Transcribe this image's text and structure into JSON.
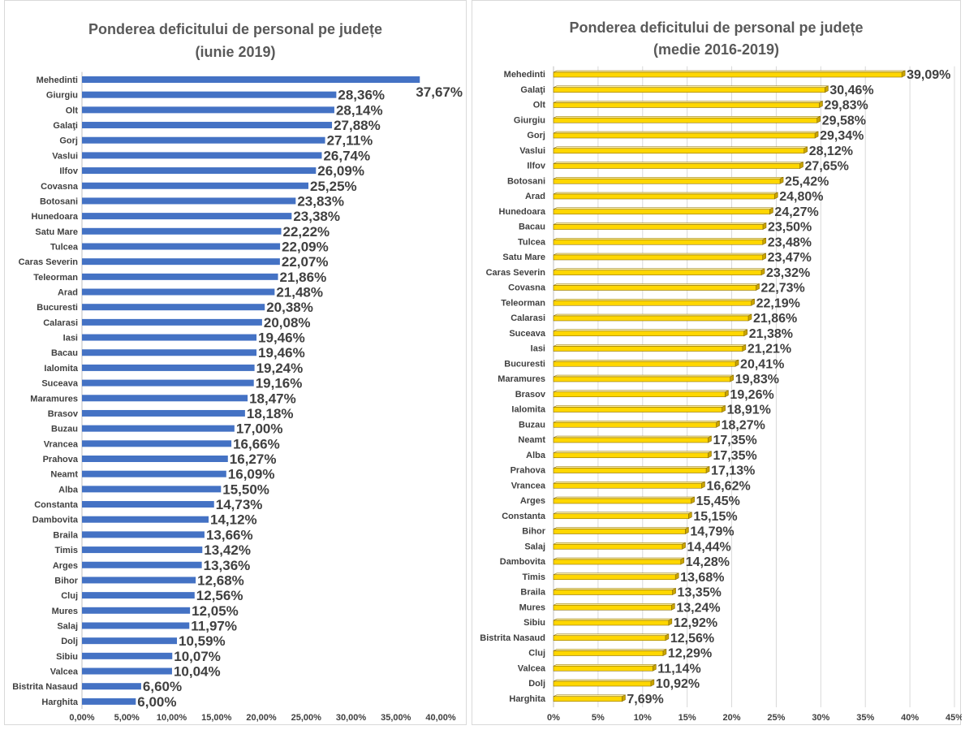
{
  "chart_data": [
    {
      "type": "bar",
      "orientation": "horizontal",
      "title": "Ponderea deficitului de personal pe județe",
      "subtitle": "(iunie 2019)",
      "categories": [
        "Mehedinti",
        "Giurgiu",
        "Olt",
        "Galaţi",
        "Gorj",
        "Vaslui",
        "Ilfov",
        "Covasna",
        "Botosani",
        "Hunedoara",
        "Satu Mare",
        "Tulcea",
        "Caras Severin",
        "Teleorman",
        "Arad",
        "Bucuresti",
        "Calarasi",
        "Iasi",
        "Bacau",
        "Ialomita",
        "Suceava",
        "Maramures",
        "Brasov",
        "Buzau",
        "Vrancea",
        "Prahova",
        "Neamt",
        "Alba",
        "Constanta",
        "Dambovita",
        "Braila",
        "Timis",
        "Arges",
        "Bihor",
        "Cluj",
        "Mures",
        "Salaj",
        "Dolj",
        "Sibiu",
        "Valcea",
        "Bistrita Nasaud",
        "Harghita"
      ],
      "values": [
        37.67,
        28.36,
        28.14,
        27.88,
        27.11,
        26.74,
        26.09,
        25.25,
        23.83,
        23.38,
        22.22,
        22.09,
        22.07,
        21.86,
        21.48,
        20.38,
        20.08,
        19.46,
        19.46,
        19.24,
        19.16,
        18.47,
        18.18,
        17.0,
        16.66,
        16.27,
        16.09,
        15.5,
        14.73,
        14.12,
        13.66,
        13.42,
        13.36,
        12.68,
        12.56,
        12.05,
        11.97,
        10.59,
        10.07,
        10.04,
        6.6,
        6.0
      ],
      "value_labels": [
        "37,67%",
        "28,36%",
        "28,14%",
        "27,88%",
        "27,11%",
        "26,74%",
        "26,09%",
        "25,25%",
        "23,83%",
        "23,38%",
        "22,22%",
        "22,09%",
        "22,07%",
        "21,86%",
        "21,48%",
        "20,38%",
        "20,08%",
        "19,46%",
        "19,46%",
        "19,24%",
        "19,16%",
        "18,47%",
        "18,18%",
        "17,00%",
        "16,66%",
        "16,27%",
        "16,09%",
        "15,50%",
        "14,73%",
        "14,12%",
        "13,66%",
        "13,42%",
        "13,36%",
        "12,68%",
        "12,56%",
        "12,05%",
        "11,97%",
        "10,59%",
        "10,07%",
        "10,04%",
        "6,60%",
        "6,00%"
      ],
      "xlim": [
        0,
        40
      ],
      "ticks": [
        0,
        5,
        10,
        15,
        20,
        25,
        30,
        35,
        40
      ],
      "tick_labels": [
        "0,00%",
        "5,00%",
        "10,00%",
        "15,00%",
        "20,00%",
        "25,00%",
        "30,00%",
        "35,00%",
        "40,00%"
      ],
      "grid": false,
      "bar_color": "#4472c4",
      "bar_style": "flat"
    },
    {
      "type": "bar",
      "orientation": "horizontal",
      "title": "Ponderea deficitului de personal pe județe",
      "subtitle": "(medie 2016-2019)",
      "categories": [
        "Mehedinti",
        "Galaţi",
        "Olt",
        "Giurgiu",
        "Gorj",
        "Vaslui",
        "Ilfov",
        "Botosani",
        "Arad",
        "Hunedoara",
        "Bacau",
        "Tulcea",
        "Satu Mare",
        "Caras Severin",
        "Covasna",
        "Teleorman",
        "Calarasi",
        "Suceava",
        "Iasi",
        "Bucuresti",
        "Maramures",
        "Brasov",
        "Ialomita",
        "Buzau",
        "Neamt",
        "Alba",
        "Prahova",
        "Vrancea",
        "Arges",
        "Constanta",
        "Bihor",
        "Salaj",
        "Dambovita",
        "Timis",
        "Braila",
        "Mures",
        "Sibiu",
        "Bistrita Nasaud",
        "Cluj",
        "Valcea",
        "Dolj",
        "Harghita"
      ],
      "values": [
        39.09,
        30.46,
        29.83,
        29.58,
        29.34,
        28.12,
        27.65,
        25.42,
        24.8,
        24.27,
        23.5,
        23.48,
        23.47,
        23.32,
        22.73,
        22.19,
        21.86,
        21.38,
        21.21,
        20.41,
        19.83,
        19.26,
        18.91,
        18.27,
        17.35,
        17.35,
        17.13,
        16.62,
        15.45,
        15.15,
        14.79,
        14.44,
        14.28,
        13.68,
        13.35,
        13.24,
        12.92,
        12.56,
        12.29,
        11.14,
        10.92,
        7.69
      ],
      "value_labels": [
        "39,09%",
        "30,46%",
        "29,83%",
        "29,58%",
        "29,34%",
        "28,12%",
        "27,65%",
        "25,42%",
        "24,80%",
        "24,27%",
        "23,50%",
        "23,48%",
        "23,47%",
        "23,32%",
        "22,73%",
        "22,19%",
        "21,86%",
        "21,38%",
        "21,21%",
        "20,41%",
        "19,83%",
        "19,26%",
        "18,91%",
        "18,27%",
        "17,35%",
        "17,35%",
        "17,13%",
        "16,62%",
        "15,45%",
        "15,15%",
        "14,79%",
        "14,44%",
        "14,28%",
        "13,68%",
        "13,35%",
        "13,24%",
        "12,92%",
        "12,56%",
        "12,29%",
        "11,14%",
        "10,92%",
        "7,69%"
      ],
      "xlim": [
        0,
        45
      ],
      "ticks": [
        0,
        5,
        10,
        15,
        20,
        25,
        30,
        35,
        40,
        45
      ],
      "tick_labels": [
        "0%",
        "5%",
        "10%",
        "15%",
        "20%",
        "25%",
        "30%",
        "35%",
        "40%",
        "45%"
      ],
      "grid": true,
      "bar_color": "#ffd700",
      "bar_style": "3d"
    }
  ]
}
